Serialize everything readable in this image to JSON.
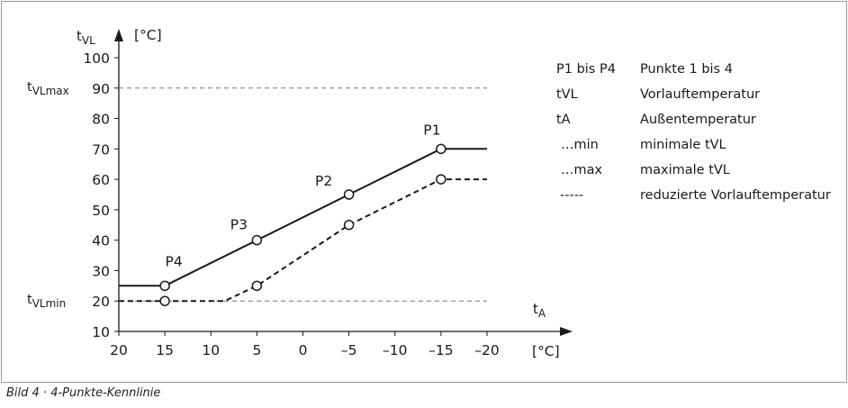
{
  "chart_data": {
    "type": "line",
    "xlabel": "tA",
    "xunit": "[°C]",
    "ylabel": "tVL",
    "yunit": "[°C]",
    "xlim": [
      20,
      -20
    ],
    "ylim": [
      10,
      100
    ],
    "x_ticks": [
      20,
      15,
      10,
      5,
      0,
      -5,
      -10,
      -15,
      -20
    ],
    "x_tick_labels": [
      "20",
      "15",
      "10",
      "5",
      "0",
      "–5",
      "–10",
      "–15",
      "–20"
    ],
    "y_ticks": [
      10,
      20,
      30,
      40,
      50,
      60,
      70,
      80,
      90,
      100
    ],
    "y_tick_labels": [
      "10",
      "20",
      "30",
      "40",
      "50",
      "60",
      "70",
      "80",
      "90",
      "100"
    ],
    "grid": false,
    "reference_lines": [
      {
        "label": "tVLmax",
        "y": 90
      },
      {
        "label": "tVLmin",
        "y": 20
      }
    ],
    "series": [
      {
        "style": "solid",
        "x": [
          20,
          15,
          5,
          -5,
          -15,
          -20
        ],
        "y": [
          25,
          25,
          40,
          55,
          70,
          70
        ],
        "points": [
          {
            "label": "P4",
            "x": 15,
            "y": 25
          },
          {
            "label": "P3",
            "x": 5,
            "y": 40
          },
          {
            "label": "P2",
            "x": -5,
            "y": 55
          },
          {
            "label": "P1",
            "x": -15,
            "y": 70
          }
        ]
      },
      {
        "style": "dashed",
        "x": [
          20,
          15,
          8.5,
          5,
          -5,
          -15,
          -20
        ],
        "y": [
          20,
          20,
          20,
          25,
          45,
          60,
          60
        ],
        "markers": [
          {
            "x": 15,
            "y": 20
          },
          {
            "x": 5,
            "y": 25
          },
          {
            "x": -5,
            "y": 45
          },
          {
            "x": -15,
            "y": 60
          }
        ]
      }
    ]
  },
  "legend": [
    {
      "key": "P1  bis  P4",
      "value": "Punkte 1 bis 4"
    },
    {
      "key": "tVL",
      "value": "Vorlauftemperatur"
    },
    {
      "key": "tA",
      "value": "Außentemperatur"
    },
    {
      "key": "…min",
      "value": "minimale tVL"
    },
    {
      "key": "…max",
      "value": "maximale tVL"
    },
    {
      "key": "-----",
      "value": "reduzierte Vorlauftemperatur"
    }
  ],
  "caption": "Bild 4 · 4-Punkte-Kennlinie"
}
